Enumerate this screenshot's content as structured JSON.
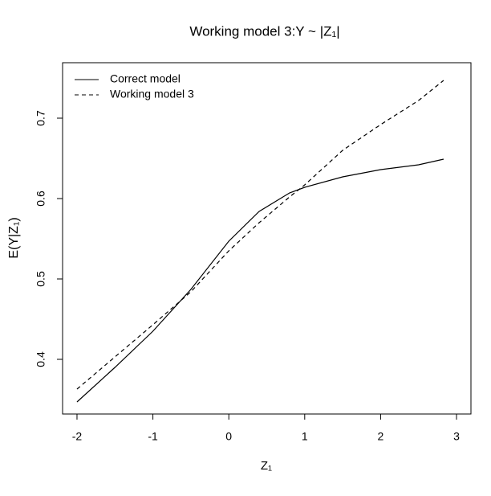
{
  "chart_data": {
    "type": "line",
    "title": "Working model 3:Y ~ |Z₁|",
    "x_label": "Z₁",
    "y_label": "E(Y|Z₁)",
    "x": [
      -2,
      -1.5,
      -1,
      -0.5,
      0,
      0.4,
      0.8,
      1,
      1.5,
      2,
      2.5,
      2.83
    ],
    "series": [
      {
        "name": "Correct model",
        "color": "#000000",
        "dash": "solid",
        "values": [
          0.347,
          0.39,
          0.435,
          0.487,
          0.547,
          0.584,
          0.607,
          0.614,
          0.627,
          0.636,
          0.642,
          0.649
        ]
      },
      {
        "name": "Working model 3",
        "color": "#000000",
        "dash": "dashed",
        "values": [
          0.363,
          0.403,
          0.443,
          0.484,
          0.535,
          0.57,
          0.602,
          0.617,
          0.66,
          0.692,
          0.722,
          0.747
        ]
      }
    ],
    "xlim": [
      -2.19,
      3.19
    ],
    "ylim": [
      0.332,
      0.769
    ],
    "xticks": [
      -2,
      -1,
      0,
      1,
      2,
      3
    ],
    "yticks": [
      0.4,
      0.5,
      0.6,
      0.7
    ],
    "legend": "top-left"
  }
}
